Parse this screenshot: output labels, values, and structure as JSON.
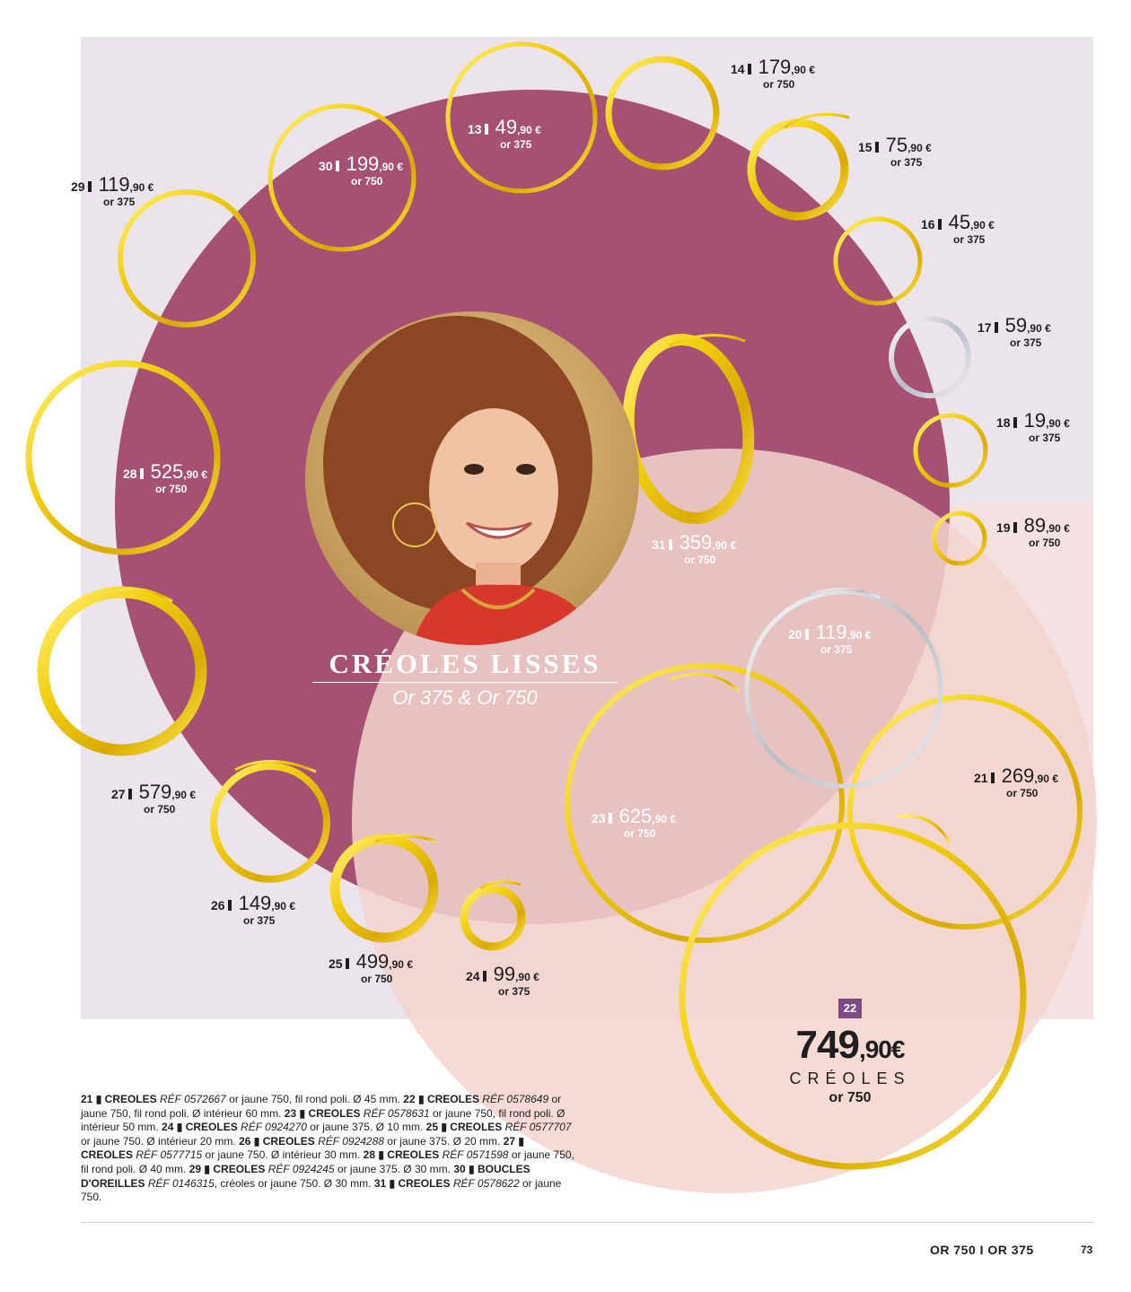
{
  "title": "CRÉOLES LISSES",
  "subtitle": "Or 375 & Or 750",
  "products": [
    {
      "num": "13",
      "euros": "49",
      "cents": ",90 €",
      "metal": "or 375"
    },
    {
      "num": "14",
      "euros": "179",
      "cents": ",90 €",
      "metal": "or 750"
    },
    {
      "num": "15",
      "euros": "75",
      "cents": ",90 €",
      "metal": "or 375"
    },
    {
      "num": "16",
      "euros": "45",
      "cents": ",90 €",
      "metal": "or 375"
    },
    {
      "num": "17",
      "euros": "59",
      "cents": ",90 €",
      "metal": "or 375"
    },
    {
      "num": "18",
      "euros": "19",
      "cents": ",90 €",
      "metal": "or 375"
    },
    {
      "num": "19",
      "euros": "89",
      "cents": ",90 €",
      "metal": "or 750"
    },
    {
      "num": "20",
      "euros": "119",
      "cents": ",90 €",
      "metal": "or 375"
    },
    {
      "num": "21",
      "euros": "269",
      "cents": ",90 €",
      "metal": "or 750"
    },
    {
      "num": "23",
      "euros": "625",
      "cents": ",90 €",
      "metal": "or 750"
    },
    {
      "num": "24",
      "euros": "99",
      "cents": ",90 €",
      "metal": "or 375"
    },
    {
      "num": "25",
      "euros": "499",
      "cents": ",90 €",
      "metal": "or 750"
    },
    {
      "num": "26",
      "euros": "149",
      "cents": ",90 €",
      "metal": "or 375"
    },
    {
      "num": "27",
      "euros": "579",
      "cents": ",90 €",
      "metal": "or 750"
    },
    {
      "num": "28",
      "euros": "525",
      "cents": ",90 €",
      "metal": "or 750"
    },
    {
      "num": "29",
      "euros": "119",
      "cents": ",90 €",
      "metal": "or 375"
    },
    {
      "num": "30",
      "euros": "199",
      "cents": ",90 €",
      "metal": "or 750"
    },
    {
      "num": "31",
      "euros": "359",
      "cents": ",90 €",
      "metal": "or 750"
    }
  ],
  "featured": {
    "badge": "22",
    "euros": "749",
    "cents": ",90€",
    "kind": "CRÉOLES",
    "metal": "or 750"
  },
  "descriptions": [
    {
      "num": "21",
      "name": "CREOLES",
      "ref": "RÉF 0572667",
      "text": " or jaune 750, fil rond poli. Ø 45 mm."
    },
    {
      "num": "22",
      "name": "CREOLES",
      "ref": "RÉF 0578649",
      "text": " or jaune 750, fil rond poli. Ø intérieur 60 mm."
    },
    {
      "num": "23",
      "name": "CREOLES",
      "ref": "RÉF 0578631",
      "text": " or jaune 750, fil rond poli. Ø intérieur 50 mm."
    },
    {
      "num": "24",
      "name": "CREOLES",
      "ref": "RÉF 0924270",
      "text": " or jaune 375. Ø 10 mm."
    },
    {
      "num": "25",
      "name": "CREOLES",
      "ref": "RÉF 0577707",
      "text": " or jaune 750. Ø intérieur 20 mm."
    },
    {
      "num": "26",
      "name": "CREOLES",
      "ref": "RÉF 0924288",
      "text": " or jaune 375. Ø 20 mm."
    },
    {
      "num": "27",
      "name": "CREOLES",
      "ref": "RÉF 0577715",
      "text": " or jaune 750. Ø intérieur 30 mm."
    },
    {
      "num": "28",
      "name": "CREOLES",
      "ref": "RÉF 0571598",
      "text": " or jaune 750, fil rond poli. Ø 40 mm."
    },
    {
      "num": "29",
      "name": "CREOLES",
      "ref": "RÉF 0924245",
      "text": " or jaune 375. Ø 30 mm."
    },
    {
      "num": "30",
      "name": "BOUCLES D'OREILLES",
      "ref": "RÉF 0146315",
      "text": ", créoles or jaune 750. Ø 30 mm."
    },
    {
      "num": "31",
      "name": "CREOLES",
      "ref": "RÉF 0578622",
      "text": " or jaune 750."
    }
  ],
  "footer": {
    "label": "OR 750 I OR 375",
    "page": "73"
  }
}
